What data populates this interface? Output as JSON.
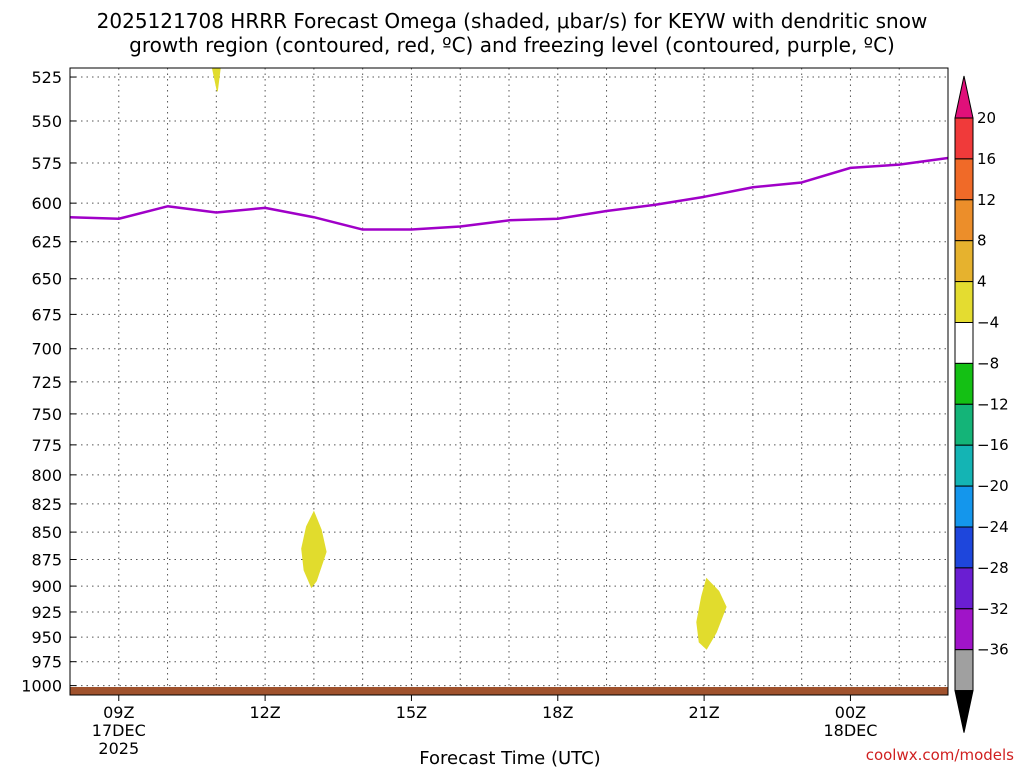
{
  "chart_data": {
    "type": "heatmap",
    "title_line1": "2025121708 HRRR Forecast Omega (shaded, μbar/s) for KEYW with dendritic snow",
    "title_line2": "growth region (contoured, red, ºC) and freezing level (contoured, purple, ºC)",
    "xlabel": "Forecast Time (UTC)",
    "ylabel": "",
    "credit": "coolwx.com/models",
    "x_range_hours": [
      8,
      26
    ],
    "y_range_hpa": [
      520,
      1010
    ],
    "y_scale": "log-pressure",
    "y_ticks": [
      525,
      550,
      575,
      600,
      625,
      650,
      675,
      700,
      725,
      750,
      775,
      800,
      825,
      850,
      875,
      900,
      925,
      950,
      975,
      1000
    ],
    "x_ticks": [
      {
        "hour": 9,
        "label": "09Z",
        "sub1": "17DEC",
        "sub2": "2025"
      },
      {
        "hour": 12,
        "label": "12Z",
        "sub1": "",
        "sub2": ""
      },
      {
        "hour": 15,
        "label": "15Z",
        "sub1": "",
        "sub2": ""
      },
      {
        "hour": 18,
        "label": "18Z",
        "sub1": "",
        "sub2": ""
      },
      {
        "hour": 21,
        "label": "21Z",
        "sub1": "",
        "sub2": ""
      },
      {
        "hour": 24,
        "label": "00Z",
        "sub1": "18DEC",
        "sub2": ""
      }
    ],
    "grid_x_hours": [
      9,
      10,
      11,
      12,
      13,
      14,
      15,
      16,
      17,
      18,
      19,
      20,
      21,
      22,
      23,
      24,
      25
    ],
    "freezing_level": {
      "color": "#a000c8",
      "hours": [
        8,
        9,
        10,
        11,
        12,
        13,
        14,
        15,
        16,
        17,
        18,
        19,
        20,
        21,
        22,
        23,
        24,
        25,
        26
      ],
      "pressure_hpa": [
        609,
        610,
        602,
        606,
        603,
        609,
        617,
        617,
        615,
        611,
        610,
        605,
        601,
        596,
        590,
        587,
        578,
        576,
        572
      ]
    },
    "omega_regions": [
      {
        "value_range": "4-8",
        "color": "#e1dc2d",
        "hours": [
          10.92,
          11.02,
          11.08
        ],
        "pressure_hpa": [
          520,
          533,
          520
        ]
      },
      {
        "value_range": "4-8",
        "color": "#e1dc2d",
        "hours": [
          13.0,
          13.15,
          13.25,
          13.05,
          12.95,
          12.8,
          12.75,
          12.85
        ],
        "pressure_hpa": [
          832,
          848,
          868,
          895,
          901,
          885,
          865,
          845
        ]
      },
      {
        "value_range": "4-8",
        "color": "#e1dc2d",
        "hours": [
          21.05,
          21.3,
          21.45,
          21.25,
          21.05,
          20.9,
          20.85,
          20.95
        ],
        "pressure_hpa": [
          893,
          905,
          920,
          945,
          962,
          955,
          935,
          910
        ]
      }
    ],
    "terrain_color": "#a0522d",
    "colorbar": {
      "labels": [
        "20",
        "16",
        "12",
        "8",
        "4",
        "−4",
        "−8",
        "−12",
        "−16",
        "−20",
        "−24",
        "−28",
        "−32",
        "−36"
      ],
      "top_arrow_color": "#e0107a",
      "bottom_arrow_color": "#000000",
      "colors": [
        "#f03a3a",
        "#f06a28",
        "#ec8e2a",
        "#e6b22e",
        "#e4dc30",
        "#ffffff",
        "#14c014",
        "#14b478",
        "#14b4b4",
        "#1496ec",
        "#1e46dc",
        "#6a1ed2",
        "#a014c8",
        "#a0a0a0"
      ]
    }
  }
}
